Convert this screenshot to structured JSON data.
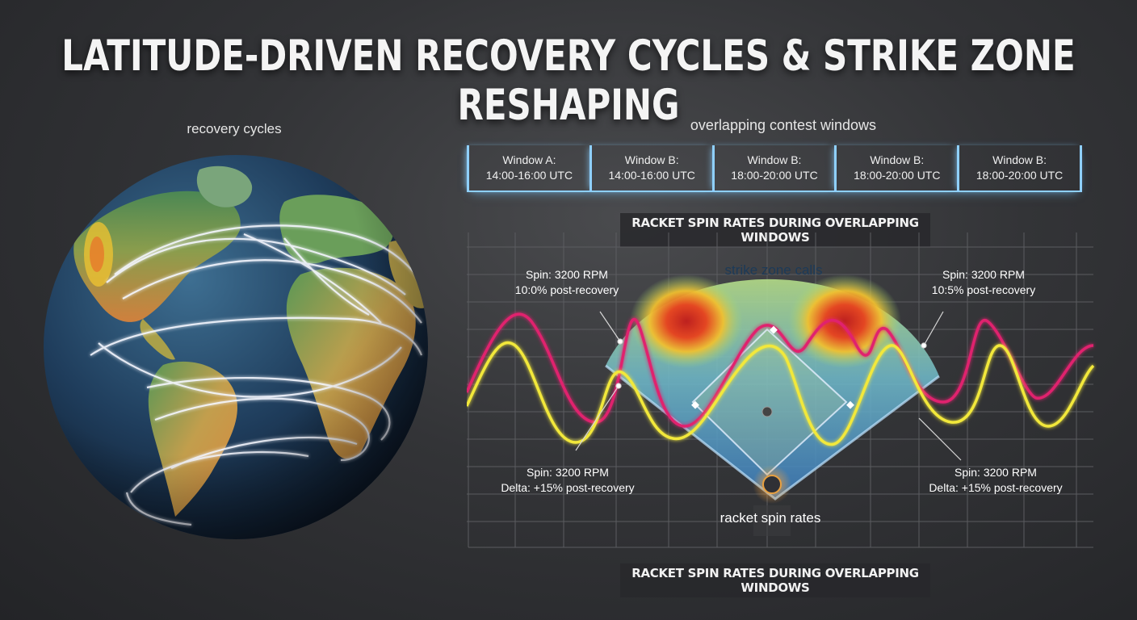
{
  "title": "LATITUDE-DRIVEN RECOVERY CYCLES & STRIKE ZONE RESHAPING",
  "globe": {
    "label": "recovery cycles"
  },
  "windows": {
    "label": "overlapping contest windows",
    "cells": [
      {
        "name": "Window A:",
        "time": "14:00-16:00 UTC"
      },
      {
        "name": "Window B:",
        "time": "14:00-16:00 UTC"
      },
      {
        "name": "Window B:",
        "time": "18:00-20:00 UTC"
      },
      {
        "name": "Window B:",
        "time": "18:00-20:00 UTC"
      },
      {
        "name": "Window B:",
        "time": "18:00-20:00 UTC"
      }
    ]
  },
  "chart": {
    "title_top": "RACKET SPIN RATES DURING OVERLAPPING WINDOWS",
    "title_bottom": "RACKET SPIN RATES DURING OVERLAPPING WINDOWS",
    "zone_label": "strike zone calls",
    "base_label": "racket spin rates",
    "annotations": [
      {
        "line1": "Spin: 3200 RPM",
        "line2": "10:0% post-recovery"
      },
      {
        "line1": "Spin: 3200 RPM",
        "line2": "10:5% post-recovery"
      },
      {
        "line1": "Spin: 3200 RPM",
        "line2": "Delta: +15% post-recovery"
      },
      {
        "line1": "Spin: 3200 RPM",
        "line2": "Delta: +15% post-recovery"
      }
    ],
    "colors": {
      "magenta": "#e0206e",
      "yellow": "#f2e83a",
      "grid": "#5b5c60",
      "window": "#8fd0ff"
    }
  }
}
